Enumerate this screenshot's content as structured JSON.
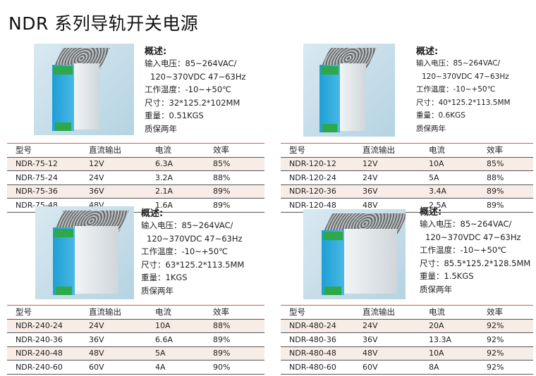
{
  "title": "NDR 系列导轨开关电源",
  "table_headers": [
    "型号",
    "直流输出",
    "电流",
    "效率"
  ],
  "products": [
    {
      "specs_heading": "概述:",
      "specs": [
        "输入电压：85~264VAC/",
        "120~370VDC 47~63Hz",
        "工作温度：-10~+50℃",
        "尺寸：32*125.2*102MM",
        "重量：0.51KGS",
        "质保两年"
      ],
      "rows": [
        [
          "NDR-75-12",
          "12V",
          "6.3A",
          "85%"
        ],
        [
          "NDR-75-24",
          "24V",
          "3.2A",
          "88%"
        ],
        [
          "NDR-75-36",
          "36V",
          "2.1A",
          "89%"
        ],
        [
          "NDR-75-48",
          "48V",
          "1.6A",
          "89%"
        ]
      ]
    },
    {
      "specs_heading": "概述:",
      "specs": [
        "输入电压：85~264VAC/",
        "120~370VDC 47~63Hz",
        "工作温度：-10~+50℃",
        "尺寸：40*125.2*113.5MM",
        "重量：0.6KGS",
        "质保两年"
      ],
      "rows": [
        [
          "NDR-120-12",
          "12V",
          "10A",
          "85%"
        ],
        [
          "NDR-120-24",
          "24V",
          "5A",
          "88%"
        ],
        [
          "NDR-120-36",
          "36V",
          "3.4A",
          "89%"
        ],
        [
          "NDR-120-48",
          "48V",
          "2.5A",
          "89%"
        ]
      ]
    },
    {
      "specs_heading": "概述:",
      "specs": [
        "输入电压：85~264VAC/",
        "120~370VDC 47~63Hz",
        "工作温度：-10~+50℃",
        "尺寸：63*125.2*113.5MM",
        "重量：1KGS",
        "质保两年"
      ],
      "rows": [
        [
          "NDR-240-24",
          "24V",
          "10A",
          "88%"
        ],
        [
          "NDR-240-36",
          "36V",
          "6.6A",
          "89%"
        ],
        [
          "NDR-240-48",
          "48V",
          "5A",
          "89%"
        ],
        [
          "NDR-240-60",
          "60V",
          "4A",
          "90%"
        ]
      ]
    },
    {
      "specs_heading": "概述:",
      "specs": [
        "输入电压：85~264VAC/",
        "120~370VDC 47~63Hz",
        "工作温度：-10~+50℃",
        "尺寸：85.5*125.2*128.5MM",
        "重量：1.5KGS",
        "质保两年"
      ],
      "rows": [
        [
          "NDR-480-24",
          "24V",
          "20A",
          "92%"
        ],
        [
          "NDR-480-36",
          "36V",
          "13.3A",
          "92%"
        ],
        [
          "NDR-480-48",
          "48V",
          "10A",
          "92%"
        ],
        [
          "NDR-480-60",
          "60V",
          "8A",
          "92%"
        ]
      ]
    }
  ]
}
